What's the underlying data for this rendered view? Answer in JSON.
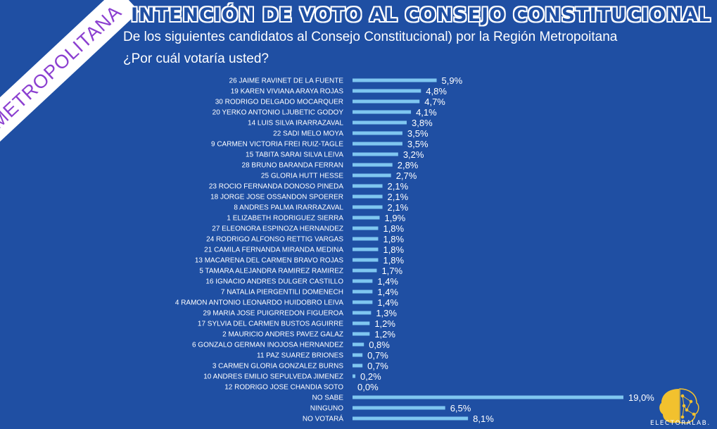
{
  "header": {
    "title": "Intención de voto al Consejo Constitucional",
    "subtitle": "De los siguientes candidatos al Consejo Constitucional) por la Región Metropoitana",
    "question": "¿Por cuál votaría usted?",
    "ribbon": "METROPOLITANA"
  },
  "brand": {
    "name": "ELECTORALAB."
  },
  "colors": {
    "background": "#1f4fa3",
    "bar": "#7fc6f0",
    "ribbon_text": "#8b3fd0",
    "logo": "#f2c12e"
  },
  "chart_data": {
    "type": "bar",
    "orientation": "horizontal",
    "categories": [
      "26 JAIME RAVINET DE LA FUENTE",
      "19 KAREN VIVIANA ARAYA ROJAS",
      "30 RODRIGO DELGADO MOCARQUER",
      "20 YERKO ANTONIO LJUBETIC GODOY",
      "14 LUIS SILVA IRARRAZAVAL",
      "22 SADI MELO MOYA",
      "9 CARMEN VICTORIA FREI RUIZ-TAGLE",
      "15 TABITA SARAI SILVA LEIVA",
      "28 BRUNO BARANDA FERRAN",
      "25 GLORIA HUTT HESSE",
      "23 ROCIO FERNANDA DONOSO PINEDA",
      "18 JORGE JOSE OSSANDON SPOERER",
      "8 ANDRES PALMA IRARRAZAVAL",
      "1 ELIZABETH RODRIGUEZ SIERRA",
      "27 ELEONORA ESPINOZA HERNANDEZ",
      "24 RODRIGO ALFONSO RETTIG VARGAS",
      "21 CAMILA FERNANDA MIRANDA MEDINA",
      "13 MACARENA DEL CARMEN BRAVO ROJAS",
      "5 TAMARA ALEJANDRA RAMIREZ RAMIREZ",
      "16 IGNACIO ANDRES DULGER CASTILLO",
      "7 NATALIA PIERGENTILI DOMENECH",
      "4 RAMON ANTONIO LEONARDO HUIDOBRO LEIVA",
      "29 MARIA JOSE PUIGRREDON FIGUEROA",
      "17 SYLVIA DEL CARMEN BUSTOS AGUIRRE",
      "2 MAURICIO ANDRES PAVEZ GALAZ",
      "6 GONZALO GERMAN INOJOSA HERNANDEZ",
      "11 PAZ SUAREZ BRIONES",
      "3 CARMEN GLORIA GONZALEZ BURNS",
      "10 ANDRES EMILIO SEPULVEDA JIMENEZ",
      "12 RODRIGO JOSE CHANDIA SOTO",
      "NO SABE",
      "NINGUNO",
      "NO VOTARÁ"
    ],
    "values": [
      5.9,
      4.8,
      4.7,
      4.1,
      3.8,
      3.5,
      3.5,
      3.2,
      2.8,
      2.7,
      2.1,
      2.1,
      2.1,
      1.9,
      1.8,
      1.8,
      1.8,
      1.8,
      1.7,
      1.4,
      1.4,
      1.4,
      1.3,
      1.2,
      1.2,
      0.8,
      0.7,
      0.7,
      0.2,
      0.0,
      19.0,
      6.5,
      8.1
    ],
    "labels": [
      "5,9%",
      "4,8%",
      "4,7%",
      "4,1%",
      "3,8%",
      "3,5%",
      "3,5%",
      "3,2%",
      "2,8%",
      "2,7%",
      "2,1%",
      "2,1%",
      "2,1%",
      "1,9%",
      "1,8%",
      "1,8%",
      "1,8%",
      "1,8%",
      "1,7%",
      "1,4%",
      "1,4%",
      "1,4%",
      "1,3%",
      "1,2%",
      "1,2%",
      "0,8%",
      "0,7%",
      "0,7%",
      "0,2%",
      "0,0%",
      "19,0%",
      "6,5%",
      "8,1%"
    ],
    "xlim": [
      0,
      19.0
    ],
    "grid": false
  }
}
